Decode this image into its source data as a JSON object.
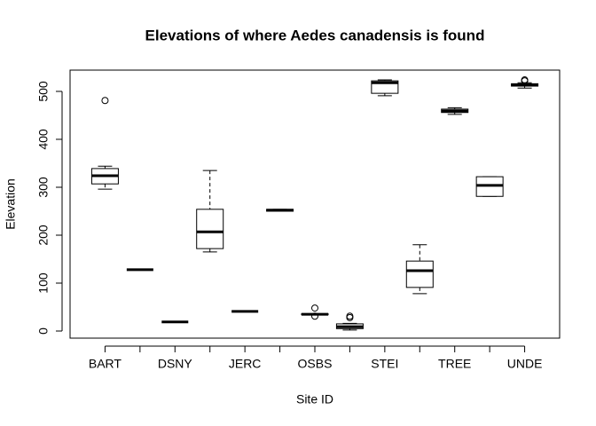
{
  "chart_data": {
    "type": "boxplot",
    "title": "Elevations of where Aedes canadensis is found",
    "x_label": "Site ID",
    "y_label": "Elevation",
    "categories": [
      "BART",
      null,
      "DSNY",
      null,
      "JERC",
      null,
      "OSBS",
      null,
      "STEI",
      null,
      "TREE",
      null,
      "UNDE"
    ],
    "boxes": [
      {
        "min": 296,
        "q1": 307,
        "median": 324,
        "q3": 339,
        "max": 344,
        "outliers": [
          481
        ]
      },
      {
        "min": 128,
        "q1": 128,
        "median": 128,
        "q3": 128,
        "max": 128,
        "outliers": []
      },
      {
        "min": 19,
        "q1": 19,
        "median": 19,
        "q3": 19,
        "max": 19,
        "outliers": []
      },
      {
        "min": 165,
        "q1": 172,
        "median": 207,
        "q3": 254,
        "max": 335,
        "outliers": []
      },
      {
        "min": 41,
        "q1": 41,
        "median": 41,
        "q3": 41,
        "max": 41,
        "outliers": []
      },
      {
        "min": 250,
        "q1": 250,
        "median": 252,
        "q3": 254,
        "max": 254,
        "outliers": []
      },
      {
        "min": 34,
        "q1": 34,
        "median": 35,
        "q3": 36,
        "max": 36,
        "outliers": [
          48,
          31
        ]
      },
      {
        "min": 2,
        "q1": 5,
        "median": 9,
        "q3": 15,
        "max": 16,
        "outliers": [
          28,
          31
        ]
      },
      {
        "min": 491,
        "q1": 496,
        "median": 518,
        "q3": 522,
        "max": 524,
        "outliers": []
      },
      {
        "min": 78,
        "q1": 91,
        "median": 126,
        "q3": 146,
        "max": 180,
        "outliers": []
      },
      {
        "min": 452,
        "q1": 456,
        "median": 459,
        "q3": 463,
        "max": 466,
        "outliers": []
      },
      {
        "min": 281,
        "q1": 281,
        "median": 304,
        "q3": 322,
        "max": 322,
        "outliers": []
      },
      {
        "min": 507,
        "q1": 511,
        "median": 513,
        "q3": 516,
        "max": 518,
        "outliers": [
          524,
          522
        ]
      }
    ],
    "ylim": [
      -14.8,
      544.4
    ],
    "yticks": [
      0,
      100,
      200,
      300,
      400,
      500
    ]
  }
}
